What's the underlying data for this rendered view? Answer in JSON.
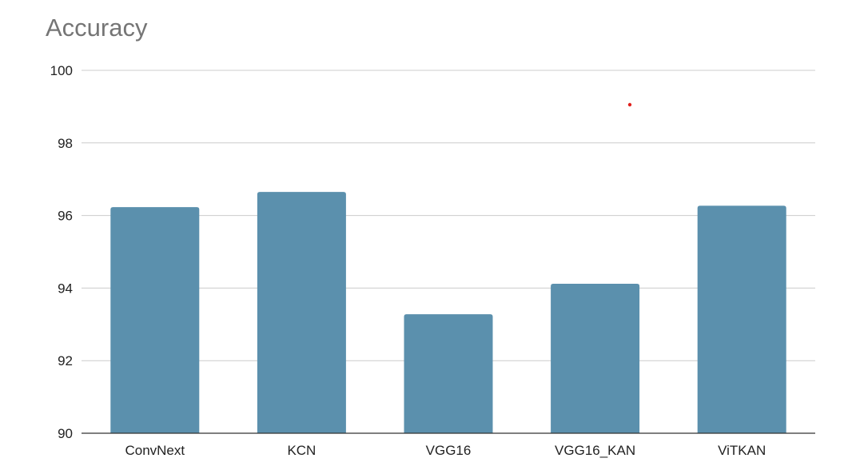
{
  "colors": {
    "bar": "#5b90ad",
    "grid": "#cccccc",
    "axis": "#333333",
    "title": "#757575",
    "marker": "#e0211d"
  },
  "chart_data": {
    "type": "bar",
    "title": "Accuracy",
    "xlabel": "",
    "ylabel": "",
    "categories": [
      "ConvNext",
      "KCN",
      "VGG16",
      "VGG16_KAN",
      "ViTKAN"
    ],
    "values": [
      96.23,
      96.65,
      93.28,
      94.12,
      96.27
    ],
    "ylim": [
      90,
      100
    ],
    "yticks": [
      90,
      92,
      94,
      96,
      98,
      100
    ],
    "grid": true,
    "legend": "none"
  }
}
